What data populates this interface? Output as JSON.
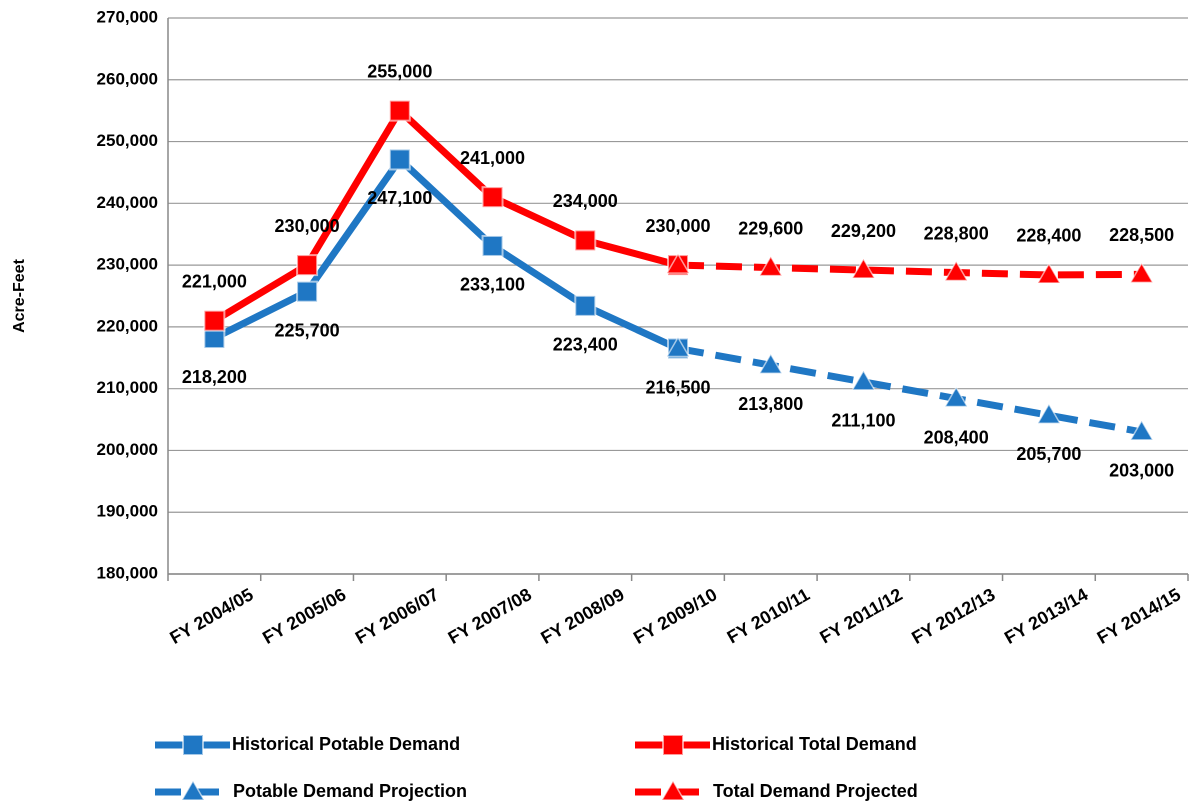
{
  "chart_data": {
    "type": "line",
    "ylabel": "Acre-Feet",
    "categories": [
      "FY 2004/05",
      "FY 2005/06",
      "FY 2006/07",
      "FY 2007/08",
      "FY 2008/09",
      "FY 2009/10",
      "FY 2010/11",
      "FY 2011/12",
      "FY 2012/13",
      "FY 2013/14",
      "FY 2014/15"
    ],
    "series": [
      {
        "name": "Historical Potable Demand",
        "color": "#1f77c4",
        "dashed": false,
        "marker": "square",
        "label_side": "below",
        "values": [
          218200,
          225700,
          247100,
          233100,
          223400,
          216500,
          null,
          null,
          null,
          null,
          null
        ],
        "value_labels": [
          "218,200",
          "225,700",
          "247,100",
          "233,100",
          "223,400",
          "216,500",
          null,
          null,
          null,
          null,
          null
        ]
      },
      {
        "name": "Historical Total Demand",
        "color": "#ff0000",
        "dashed": false,
        "marker": "square",
        "label_side": "above",
        "values": [
          221000,
          230000,
          255000,
          241000,
          234000,
          230000,
          null,
          null,
          null,
          null,
          null
        ],
        "value_labels": [
          "221,000",
          "230,000",
          "255,000",
          "241,000",
          "234,000",
          "230,000",
          null,
          null,
          null,
          null,
          null
        ]
      },
      {
        "name": "Potable Demand Projection",
        "color": "#1f77c4",
        "dashed": true,
        "marker": "triangle",
        "label_side": "below",
        "values": [
          null,
          null,
          null,
          null,
          null,
          216500,
          213800,
          211100,
          208400,
          205700,
          203000
        ],
        "value_labels": [
          null,
          null,
          null,
          null,
          null,
          null,
          "213,800",
          "211,100",
          "208,400",
          "205,700",
          "203,000"
        ]
      },
      {
        "name": "Total Demand Projected",
        "color": "#ff0000",
        "dashed": true,
        "marker": "triangle",
        "label_side": "above",
        "values": [
          null,
          null,
          null,
          null,
          null,
          230000,
          229600,
          229200,
          228800,
          228400,
          228500
        ],
        "value_labels": [
          null,
          null,
          null,
          null,
          null,
          null,
          "229,600",
          "229,200",
          "228,800",
          "228,400",
          "228,500"
        ]
      }
    ],
    "ylim": [
      180000,
      270000
    ],
    "yticks": [
      {
        "value": 180000,
        "label": "180,000"
      },
      {
        "value": 190000,
        "label": "190,000"
      },
      {
        "value": 200000,
        "label": "200,000"
      },
      {
        "value": 210000,
        "label": "210,000"
      },
      {
        "value": 220000,
        "label": "220,000"
      },
      {
        "value": 230000,
        "label": "230,000"
      },
      {
        "value": 240000,
        "label": "240,000"
      },
      {
        "value": 250000,
        "label": "250,000"
      },
      {
        "value": 260000,
        "label": "260,000"
      },
      {
        "value": 270000,
        "label": "270,000"
      }
    ],
    "grid": true
  }
}
